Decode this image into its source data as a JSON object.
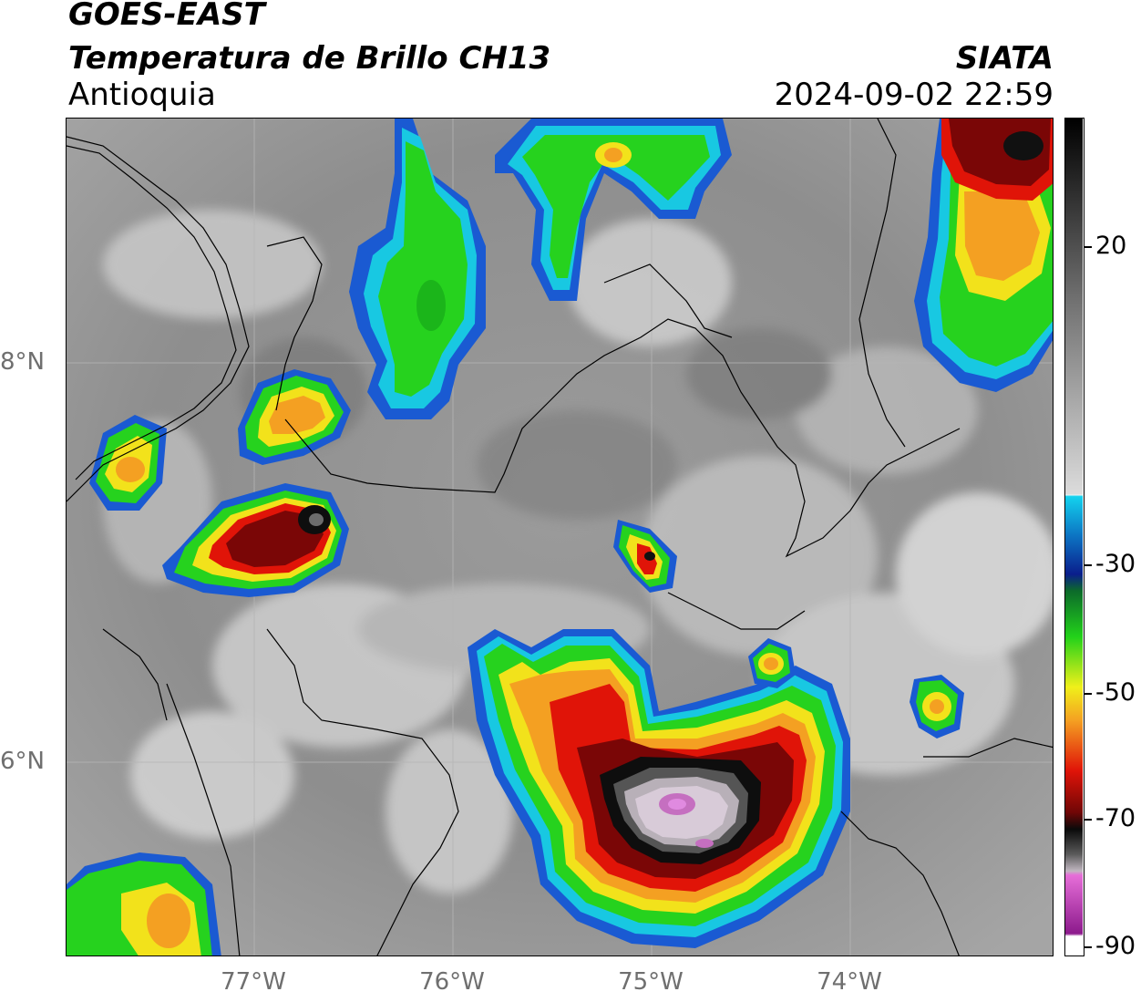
{
  "header": {
    "satellite": "GOES-EAST",
    "product": "Temperatura de Brillo CH13",
    "region": "Antioquia",
    "org": "SIATA",
    "datetime": "2024-09-02 22:59"
  },
  "map": {
    "lat_labels": [
      "8°N",
      "6°N"
    ],
    "lon_labels": [
      "77°W",
      "76°W",
      "75°W",
      "74°W"
    ],
    "colors": {
      "cold_core": "#c56fc0",
      "very_cold": "#d8cbd8",
      "black": "#0e0e0e",
      "dark_red": "#7a0606",
      "red": "#e01408",
      "orange": "#f4a022",
      "yellow": "#f2e21b",
      "green": "#22d21a",
      "blue": "#1658cc",
      "cyan": "#16cde6",
      "land_gray": "#8c8c8c",
      "light_gray": "#d6d6d6"
    },
    "icon": "satellite-brightness-temperature-map"
  },
  "colorbar": {
    "labels": [
      "20",
      "-30",
      "-50",
      "-70",
      "-90"
    ],
    "unit_hint": "°C"
  }
}
